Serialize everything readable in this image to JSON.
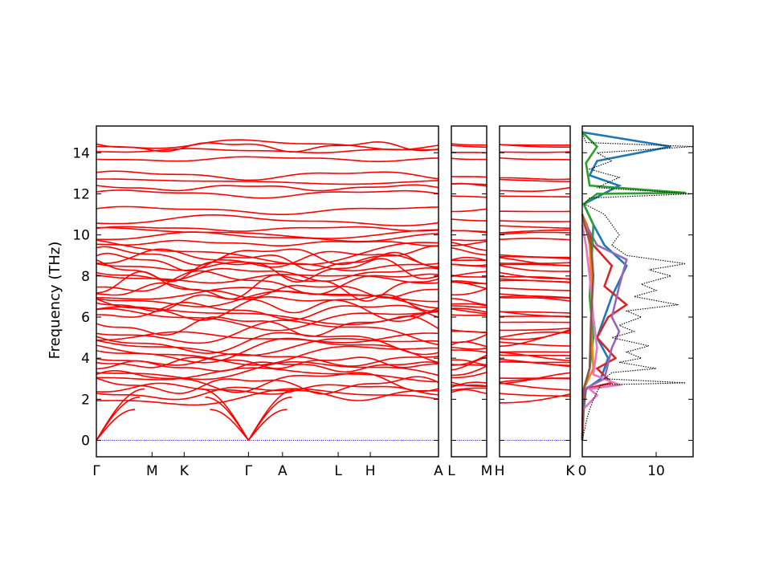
{
  "chart_data": {
    "type": "line",
    "ylabel": "Frequency (THz)",
    "ylim": [
      -0.8,
      15.3
    ],
    "yticks": [
      0,
      2,
      4,
      6,
      8,
      10,
      12,
      14
    ],
    "grid": false,
    "colors": {
      "band": "#ff0000",
      "zero_line": "#0000cc",
      "total_dos": "#000000"
    },
    "band_segments": [
      {
        "name": "segment-1",
        "tick_labels": [
          "Γ",
          "M",
          "K",
          "Γ",
          "A",
          "L",
          "H",
          "A"
        ],
        "tick_positions": [
          0,
          0.577,
          0.91,
          1.577,
          1.93,
          2.507,
          2.84,
          3.547
        ]
      },
      {
        "name": "segment-2",
        "tick_labels": [
          "L",
          "M"
        ],
        "tick_positions": [
          0,
          0.353
        ]
      },
      {
        "name": "segment-3",
        "tick_labels": [
          "H",
          "K"
        ],
        "tick_positions": [
          0,
          0.353
        ]
      }
    ],
    "bands": {
      "acoustic_max_frequency": 2.5,
      "low_optical": [
        2.1,
        2.3,
        2.5,
        2.7,
        2.9,
        3.2,
        3.4,
        3.6,
        3.8,
        3.95,
        4.2,
        4.4,
        4.6,
        4.8,
        5.0,
        5.3,
        5.6,
        5.9,
        6.1,
        6.3,
        6.5,
        6.7,
        6.9,
        7.1,
        7.3,
        7.5,
        7.7,
        7.9,
        8.1,
        8.3,
        8.5,
        8.7,
        8.85,
        9.0,
        9.2
      ],
      "high_optical": [
        9.6,
        9.9,
        10.1,
        10.3,
        10.7,
        11.2,
        12.0,
        12.3,
        12.6,
        12.9,
        13.7,
        14.1,
        14.3,
        14.4
      ]
    },
    "dos": {
      "xlim": [
        0,
        15
      ],
      "xticks": [
        0,
        10
      ],
      "total": [
        [
          0,
          0
        ],
        [
          0.3,
          0.5
        ],
        [
          0.6,
          1.0
        ],
        [
          1.0,
          1.5
        ],
        [
          1.5,
          2.0
        ],
        [
          2.5,
          2.7
        ],
        [
          14,
          2.8
        ],
        [
          3,
          3.0
        ],
        [
          4,
          3.3
        ],
        [
          10,
          3.5
        ],
        [
          5,
          3.8
        ],
        [
          8,
          4.0
        ],
        [
          6,
          4.3
        ],
        [
          9,
          4.6
        ],
        [
          4,
          5.0
        ],
        [
          7,
          5.3
        ],
        [
          5,
          5.6
        ],
        [
          8,
          6.0
        ],
        [
          6,
          6.3
        ],
        [
          13,
          6.6
        ],
        [
          7,
          7.0
        ],
        [
          10,
          7.3
        ],
        [
          8,
          7.6
        ],
        [
          12,
          8.0
        ],
        [
          9,
          8.3
        ],
        [
          14,
          8.6
        ],
        [
          6,
          9.0
        ],
        [
          4,
          9.5
        ],
        [
          5,
          10.0
        ],
        [
          4,
          10.5
        ],
        [
          3,
          11.0
        ],
        [
          0.3,
          11.5
        ],
        [
          1,
          11.8
        ],
        [
          15,
          12.0
        ],
        [
          2,
          12.3
        ],
        [
          5,
          12.8
        ],
        [
          1,
          13.2
        ],
        [
          4,
          13.6
        ],
        [
          2,
          14.0
        ],
        [
          15,
          14.3
        ],
        [
          0.5,
          14.5
        ],
        [
          0,
          15.0
        ]
      ],
      "projected": [
        {
          "color": "#1f77b4",
          "points": [
            [
              0,
              0
            ],
            [
              0.2,
              1.5
            ],
            [
              0.5,
              2.5
            ],
            [
              2.5,
              3.0
            ],
            [
              3.5,
              4.0
            ],
            [
              2,
              5.0
            ],
            [
              3,
              6.0
            ],
            [
              4,
              7.0
            ],
            [
              6,
              8.5
            ],
            [
              3,
              9.5
            ],
            [
              1.5,
              10.5
            ],
            [
              0.2,
              11.5
            ],
            [
              5,
              12.4
            ],
            [
              1,
              12.9
            ],
            [
              2,
              13.6
            ],
            [
              12,
              14.3
            ],
            [
              0,
              15.0
            ]
          ]
        },
        {
          "color": "#d62728",
          "points": [
            [
              0,
              0
            ],
            [
              0.1,
              1.5
            ],
            [
              0.4,
              2.5
            ],
            [
              4,
              2.8
            ],
            [
              2,
              3.5
            ],
            [
              4.5,
              4.0
            ],
            [
              2,
              5.0
            ],
            [
              3.5,
              6.0
            ],
            [
              6,
              6.6
            ],
            [
              3,
              7.5
            ],
            [
              4,
              8.5
            ],
            [
              1.5,
              9.5
            ],
            [
              0.6,
              10.5
            ],
            [
              0,
              11.0
            ]
          ]
        },
        {
          "color": "#9467bd",
          "points": [
            [
              0,
              0
            ],
            [
              0.1,
              1.5
            ],
            [
              0.3,
              2.5
            ],
            [
              3,
              3.0
            ],
            [
              4,
              4.5
            ],
            [
              5,
              5.3
            ],
            [
              4,
              6.0
            ],
            [
              5,
              7.5
            ],
            [
              6,
              8.8
            ],
            [
              2,
              9.5
            ],
            [
              0.5,
              10.5
            ],
            [
              0,
              11.0
            ]
          ]
        },
        {
          "color": "#2ca02c",
          "points": [
            [
              0,
              0
            ],
            [
              0.1,
              1.5
            ],
            [
              0.2,
              2.5
            ],
            [
              1,
              3.5
            ],
            [
              1.5,
              5.0
            ],
            [
              1.0,
              7.0
            ],
            [
              1.3,
              9.0
            ],
            [
              1.5,
              10.5
            ],
            [
              0.2,
              11.5
            ],
            [
              2,
              12.0
            ],
            [
              14,
              12.05
            ],
            [
              1,
              12.4
            ],
            [
              0.5,
              13.5
            ],
            [
              2,
              14.3
            ],
            [
              0,
              15.0
            ]
          ]
        },
        {
          "color": "#ff7f0e",
          "points": [
            [
              0,
              0
            ],
            [
              0.2,
              2.5
            ],
            [
              1.5,
              3.5
            ],
            [
              1.2,
              5.5
            ],
            [
              1.3,
              7.5
            ],
            [
              1.0,
              9.5
            ],
            [
              0.5,
              10.5
            ],
            [
              0,
              11.0
            ]
          ]
        },
        {
          "color": "#e377c2",
          "points": [
            [
              0,
              0
            ],
            [
              0.1,
              1.5
            ],
            [
              2,
              2.2
            ],
            [
              1,
              2.5
            ],
            [
              5,
              2.7
            ],
            [
              1.5,
              3.2
            ],
            [
              2,
              4.5
            ],
            [
              1.5,
              6.0
            ],
            [
              1,
              8.0
            ],
            [
              0.5,
              9.5
            ],
            [
              0,
              10.5
            ]
          ]
        },
        {
          "color": "#8c564b",
          "points": [
            [
              0,
              0
            ],
            [
              0.2,
              2.5
            ],
            [
              1,
              3.5
            ],
            [
              1.2,
              6.0
            ],
            [
              1.5,
              8.0
            ],
            [
              1.2,
              9.5
            ],
            [
              0.3,
              10.5
            ],
            [
              0,
              11.0
            ]
          ]
        }
      ]
    }
  }
}
